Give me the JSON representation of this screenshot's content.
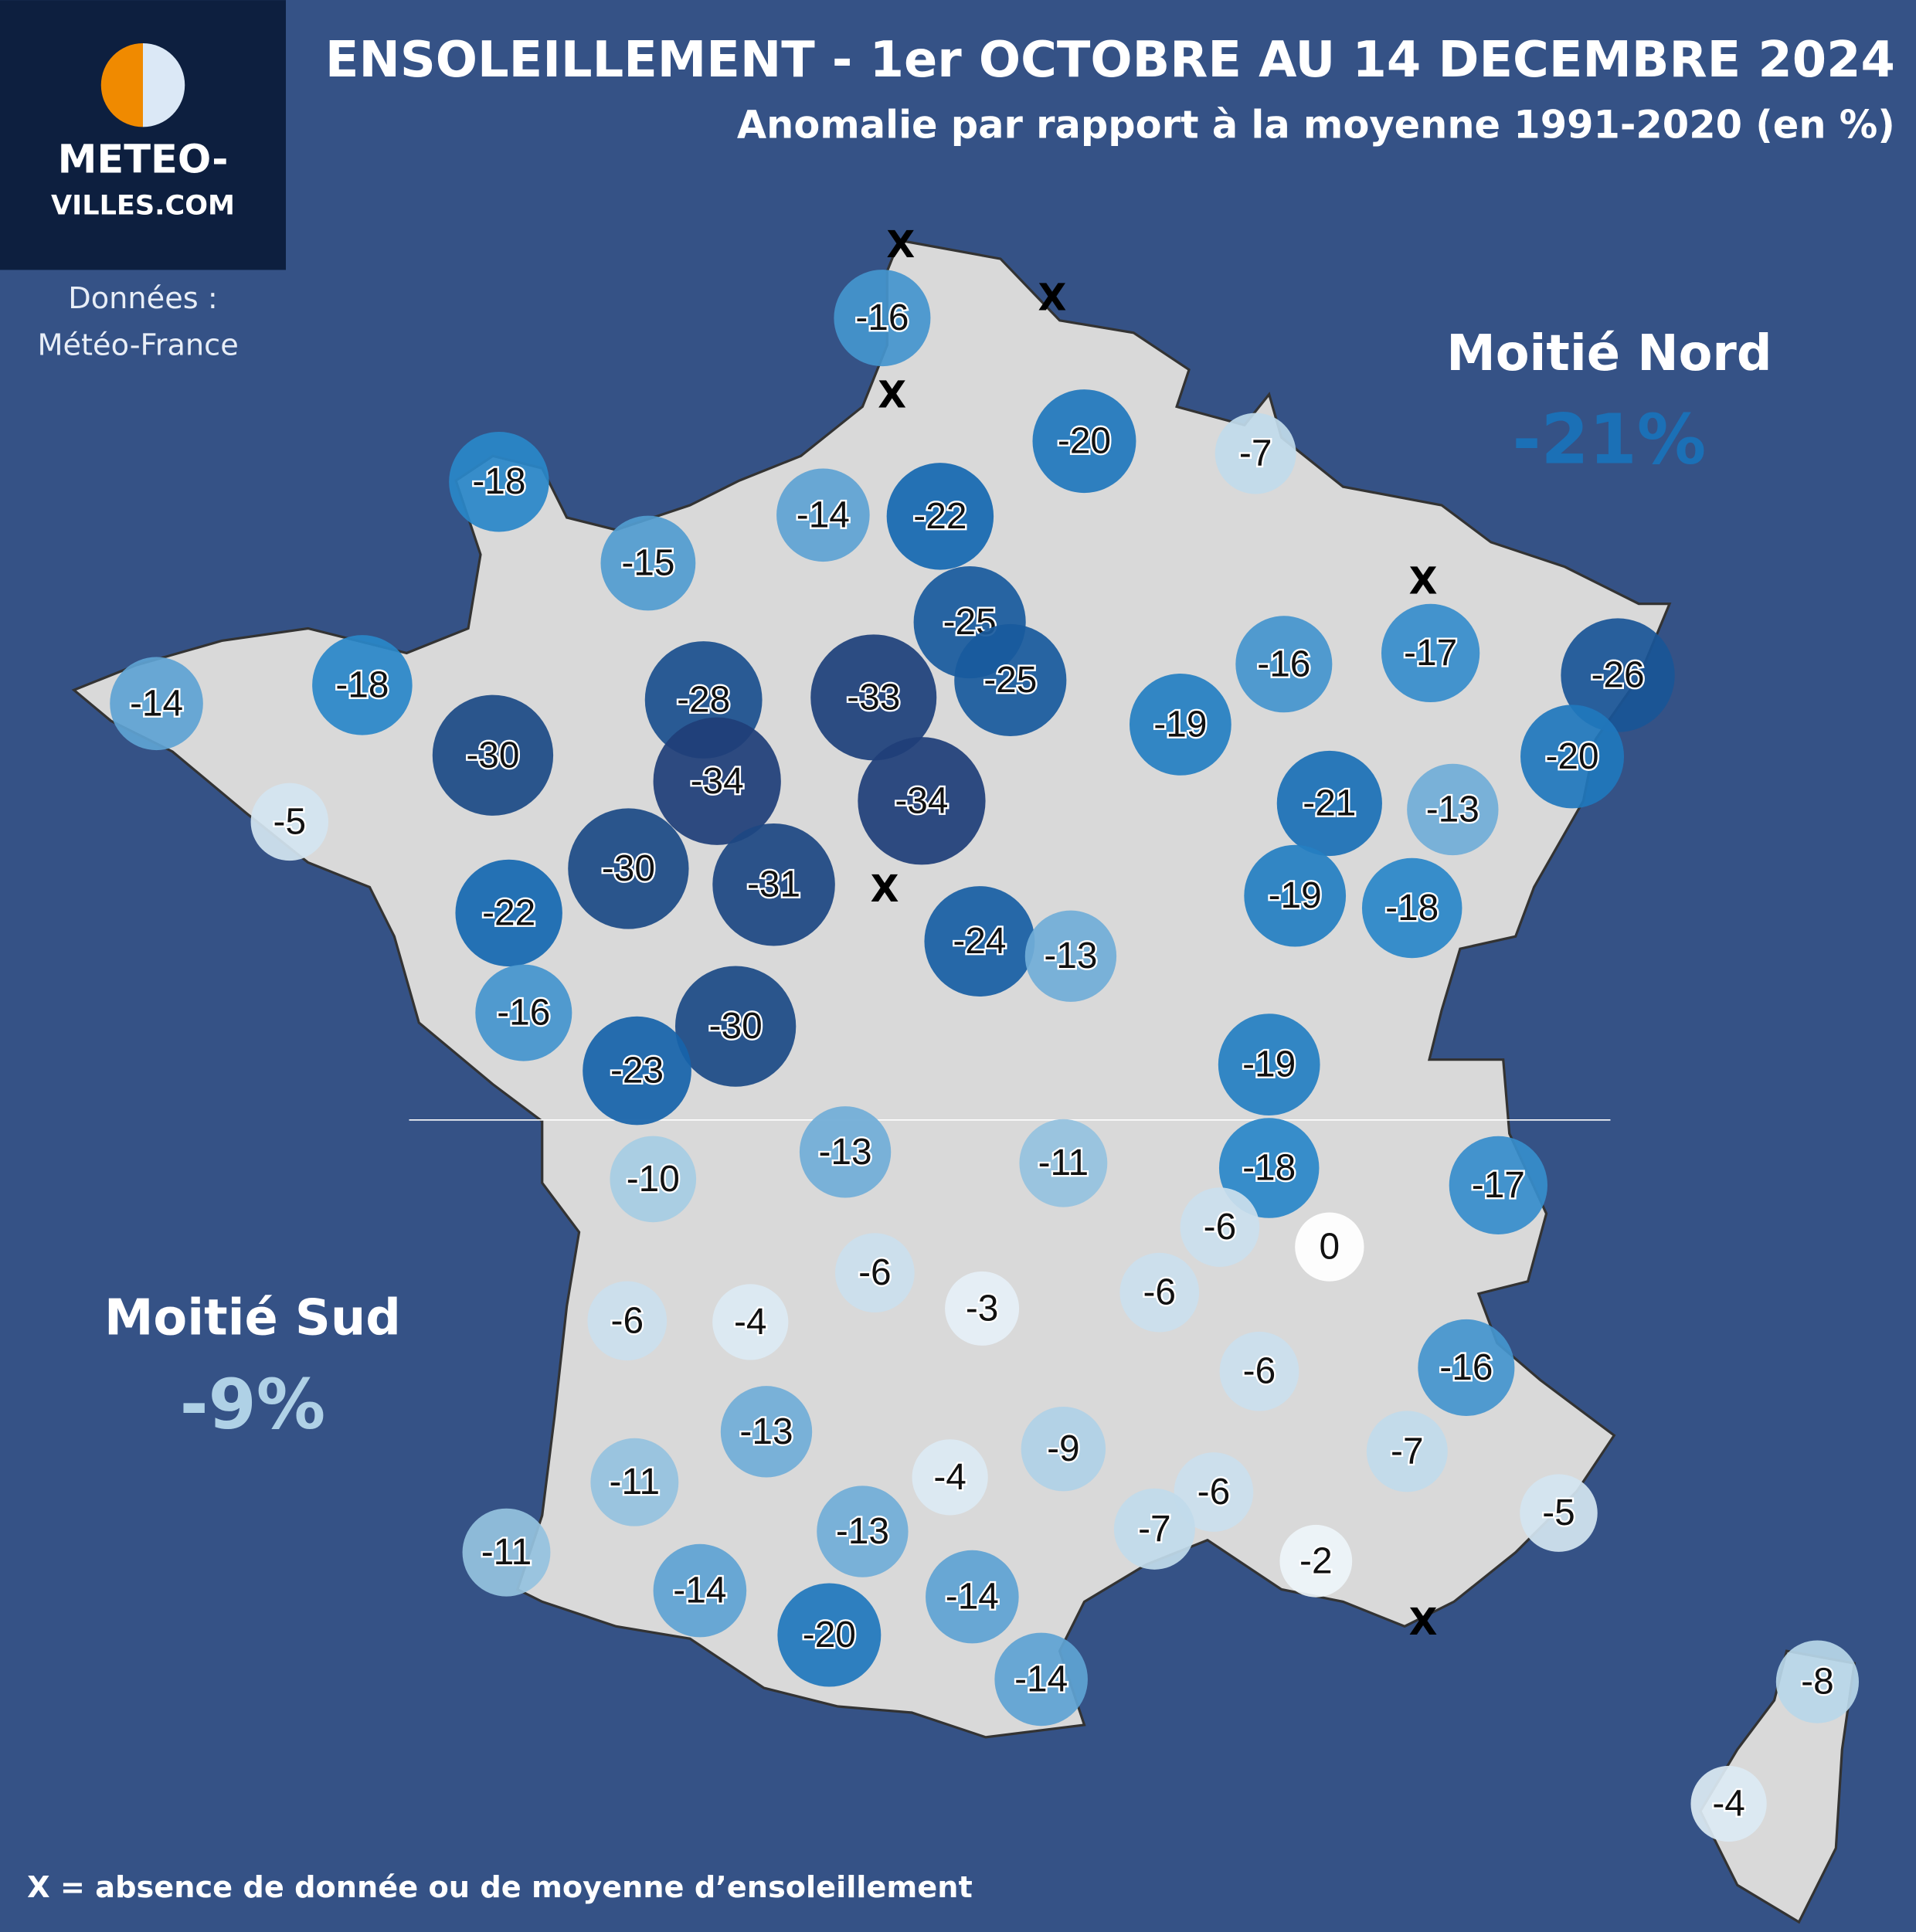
{
  "header": {
    "title": "ENSOLEILLEMENT - 1er OCTOBRE AU 14 DECEMBRE 2024",
    "subtitle": "Anomalie par rapport à la moyenne 1991-2020 (en %)"
  },
  "logo": {
    "line1": "METEO-",
    "line2": "VILLES.COM"
  },
  "source": {
    "line1": "Données :",
    "line2": "Météo-France"
  },
  "regions": [
    {
      "name": "Moitié Nord",
      "value": -21,
      "value_label": "-21%"
    },
    {
      "name": "Moitié Sud",
      "value": -9,
      "value_label": "-9%"
    }
  ],
  "stations": {
    "values": [
      -16,
      -20,
      -7,
      -18,
      -14,
      -22,
      -15,
      -25,
      -25,
      -16,
      -17,
      -26,
      -14,
      -18,
      -28,
      -33,
      -30,
      -34,
      -34,
      -19,
      -20,
      -21,
      -13,
      -5,
      -30,
      -31,
      -22,
      -19,
      -18,
      -24,
      -13,
      -16,
      -30,
      -23,
      -19,
      -13,
      -10,
      -11,
      -18,
      -17,
      -6,
      0,
      -6,
      -3,
      -6,
      -6,
      -4,
      -6,
      -16,
      -13,
      -9,
      -7,
      -11,
      -4,
      -6,
      -5,
      -11,
      -13,
      -7,
      -2,
      -14,
      -14,
      -20,
      -14,
      -8,
      -4
    ]
  },
  "missing": {
    "marker": "X"
  },
  "footnote": "X = absence de donnée ou de moyenne d’ensoleillement"
}
